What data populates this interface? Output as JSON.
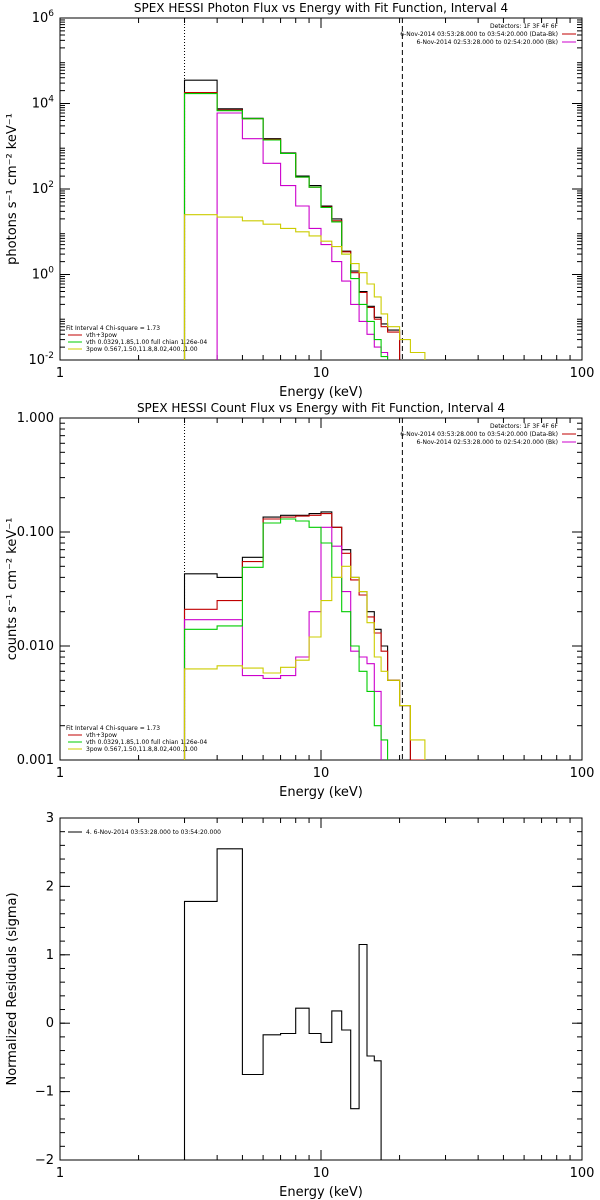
{
  "chart_data": [
    {
      "type": "line",
      "title": "SPEX HESSI Photon Flux vs Energy with Fit Function, Interval 4",
      "xlabel": "Energy (keV)",
      "ylabel": "photons s⁻¹ cm⁻² keV⁻¹",
      "xscale": "log",
      "yscale": "log",
      "xlim": [
        1,
        100
      ],
      "ylim": [
        0.01,
        1000000
      ],
      "xticks": [
        "1",
        "10",
        "100"
      ],
      "yticks": [
        {
          "base": "10",
          "exp": "6",
          "v": 1000000
        },
        {
          "base": "10",
          "exp": "4",
          "v": 10000
        },
        {
          "base": "10",
          "exp": "2",
          "v": 100
        },
        {
          "base": "10",
          "exp": "0",
          "v": 1
        },
        {
          "base": "10",
          "exp": "-2",
          "v": 0.01
        }
      ],
      "vlines": [
        {
          "x": 3.0,
          "style": "dotted"
        },
        {
          "x": 20.5,
          "style": "dashed"
        }
      ],
      "legend_right": [
        "Detectors: 1F 3F 4F 6F",
        "6-Nov-2014 03:53:28.000 to 03:54:20.000 (Data-Bk)",
        "6-Nov-2014 02:53:28.000 to 02:54:20.000 (Bk)"
      ],
      "legend_right_colors": [
        "#000000",
        "#c00000",
        "#cc00cc"
      ],
      "legend_left": [
        "Fit Interval 4   Chi-square = 1.73",
        "vth+3pow",
        "vth 0.0329,1.85,1.00  full chian 1.26e-04",
        "3pow 0.567,1.50,11.8,8.02,400.,1.00"
      ],
      "legend_left_colors": [
        "",
        "#c00000",
        "#00cc00",
        "#cccc00"
      ],
      "edges": [
        3.0,
        4.0,
        5.0,
        6.0,
        7.0,
        8.0,
        9.0,
        10.0,
        11.0,
        12.0,
        13.0,
        14.0,
        15.0,
        16.0,
        17.0,
        18.0,
        20.0,
        22.0,
        25.0
      ],
      "series": [
        {
          "name": "Data-Bk",
          "color": "#000000",
          "values": [
            35000,
            7500,
            4500,
            1500,
            700,
            200,
            120,
            40,
            20,
            3.5,
            1.2,
            0.4,
            0.18,
            0.1,
            0.07,
            0.05,
            null,
            null
          ]
        },
        {
          "name": "vth+3pow",
          "color": "#c00000",
          "values": [
            18000,
            7000,
            4400,
            1450,
            680,
            190,
            110,
            38,
            18,
            3.4,
            1.1,
            0.38,
            0.17,
            0.09,
            0.06,
            0.045,
            null,
            null
          ]
        },
        {
          "name": "Bk",
          "color": "#cc00cc",
          "values": [
            null,
            6000,
            1500,
            400,
            120,
            40,
            12,
            5,
            2,
            0.7,
            0.2,
            0.08,
            0.04,
            0.02,
            0.015,
            null,
            null,
            null
          ]
        },
        {
          "name": "vth",
          "color": "#00cc00",
          "values": [
            17000,
            6800,
            4400,
            1400,
            680,
            190,
            110,
            37,
            17,
            3.0,
            0.8,
            0.2,
            0.08,
            0.03,
            0.012,
            null,
            null,
            null
          ]
        },
        {
          "name": "3pow",
          "color": "#cccc00",
          "values": [
            25,
            22,
            18,
            15,
            12,
            10,
            8,
            6,
            4.5,
            3.0,
            1.8,
            1.1,
            0.6,
            0.3,
            0.12,
            0.06,
            0.03,
            0.015
          ]
        }
      ]
    },
    {
      "type": "line",
      "title": "SPEX HESSI Count Flux vs Energy with Fit Function, Interval 4",
      "xlabel": "Energy (keV)",
      "ylabel": "counts s⁻¹ cm⁻² keV⁻¹",
      "xscale": "log",
      "yscale": "log",
      "xlim": [
        1,
        100
      ],
      "ylim": [
        0.001,
        1.0
      ],
      "xticks": [
        "1",
        "10",
        "100"
      ],
      "yticks": [
        {
          "base": "1.000",
          "v": 1.0
        },
        {
          "base": "0.100",
          "v": 0.1
        },
        {
          "base": "0.010",
          "v": 0.01
        },
        {
          "base": "0.001",
          "v": 0.001
        }
      ],
      "vlines": [
        {
          "x": 3.0,
          "style": "dotted"
        },
        {
          "x": 20.5,
          "style": "dashed"
        }
      ],
      "legend_right": [
        "Detectors: 1F 3F 4F 6F",
        "6-Nov-2014 03:53:28.000 to 03:54:20.000 (Data-Bk)",
        "6-Nov-2014 02:53:28.000 to 02:54:20.000 (Bk)"
      ],
      "legend_right_colors": [
        "#000000",
        "#c00000",
        "#cc00cc"
      ],
      "legend_left": [
        "Fit Interval 4   Chi-square = 1.73",
        "vth+3pow",
        "vth 0.0329,1.85,1.00  full chian 1.26e-04",
        "3pow 0.567,1.50,11.8,8.02,400.,1.00"
      ],
      "legend_left_colors": [
        "",
        "#c00000",
        "#00cc00",
        "#cccc00"
      ],
      "edges": [
        3.0,
        4.0,
        5.0,
        6.0,
        7.0,
        8.0,
        9.0,
        10.0,
        11.0,
        12.0,
        13.0,
        14.0,
        15.0,
        16.0,
        17.0,
        18.0,
        20.0,
        22.0,
        25.0
      ],
      "series": [
        {
          "name": "Data-Bk",
          "color": "#000000",
          "values": [
            0.043,
            0.04,
            0.06,
            0.135,
            0.14,
            0.14,
            0.145,
            0.15,
            0.11,
            0.07,
            0.04,
            0.03,
            0.02,
            0.014,
            0.01,
            0.005,
            0.003,
            0.001
          ]
        },
        {
          "name": "vth+3pow",
          "color": "#c00000",
          "values": [
            0.021,
            0.025,
            0.055,
            0.13,
            0.135,
            0.138,
            0.14,
            0.145,
            0.11,
            0.065,
            0.038,
            0.028,
            0.018,
            0.013,
            0.009,
            0.005,
            0.003,
            0.001
          ]
        },
        {
          "name": "Bk",
          "color": "#cc00cc",
          "values": [
            0.017,
            0.017,
            0.0055,
            0.0052,
            0.0055,
            0.008,
            0.02,
            0.11,
            0.075,
            0.03,
            0.009,
            0.008,
            0.007,
            0.004,
            null,
            null,
            null,
            null
          ]
        },
        {
          "name": "vth",
          "color": "#00cc00",
          "values": [
            0.014,
            0.015,
            0.049,
            0.12,
            0.13,
            0.125,
            0.11,
            0.08,
            0.04,
            0.02,
            0.01,
            0.006,
            0.004,
            0.002,
            0.0015,
            null,
            null,
            null
          ]
        },
        {
          "name": "3pow",
          "color": "#cccc00",
          "values": [
            0.0063,
            0.0067,
            0.0064,
            0.0058,
            0.0065,
            0.0075,
            0.012,
            0.025,
            0.04,
            0.05,
            0.04,
            0.03,
            0.016,
            0.008,
            0.006,
            0.005,
            0.003,
            0.0015
          ]
        }
      ]
    },
    {
      "type": "line",
      "title": "",
      "xlabel": "Energy (keV)",
      "ylabel": "Normalized Residuals (sigma)",
      "xscale": "log",
      "yscale": "linear",
      "xlim": [
        1,
        100
      ],
      "ylim": [
        -2,
        3
      ],
      "xticks": [
        "1",
        "10",
        "100"
      ],
      "yticks": [
        {
          "base": "3",
          "v": 3
        },
        {
          "base": "2",
          "v": 2
        },
        {
          "base": "1",
          "v": 1
        },
        {
          "base": "0",
          "v": 0
        },
        {
          "base": "−1",
          "v": -1
        },
        {
          "base": "−2",
          "v": -2
        }
      ],
      "legend_right": [],
      "legend_right_colors": [],
      "legend_left": [
        "4.  6-Nov-2014 03:53:28.000 to 03:54:20.000"
      ],
      "legend_left_colors": [
        "#000000"
      ],
      "edges": [
        3.0,
        4.0,
        5.0,
        6.0,
        7.0,
        8.0,
        9.0,
        10.0,
        11.0,
        12.0,
        13.0,
        14.0,
        15.0,
        16.0,
        17.0,
        18.0,
        20.0
      ],
      "series": [
        {
          "name": "4.  6-Nov-2014 03:53:28.000 to 03:54:20.000",
          "color": "#000000",
          "values": [
            1.78,
            2.55,
            -0.75,
            -0.17,
            -0.15,
            0.22,
            -0.15,
            -0.28,
            0.18,
            -0.1,
            -1.25,
            1.15,
            -0.48,
            -0.55,
            -2.0,
            -2.0
          ]
        }
      ]
    }
  ]
}
